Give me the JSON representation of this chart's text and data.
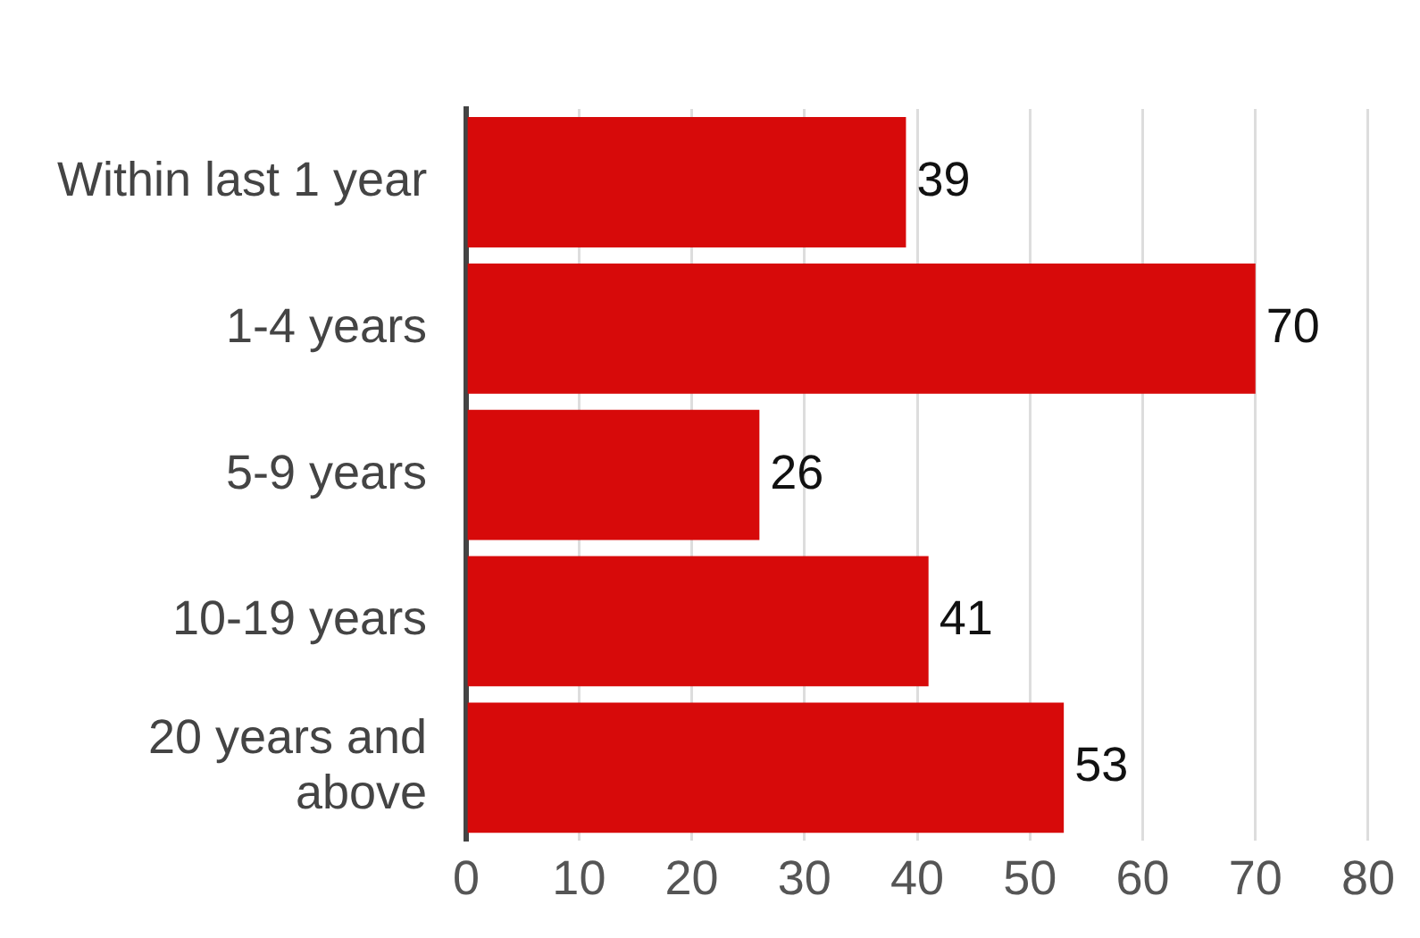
{
  "chart_data": {
    "type": "bar",
    "orientation": "horizontal",
    "categories": [
      "Within last 1 year",
      "1-4 years",
      "5-9 years",
      "10-19 years",
      "20 years and above"
    ],
    "values": [
      39,
      70,
      26,
      41,
      53
    ],
    "color": "#d70a0a",
    "data_labels": true,
    "xlim": [
      0,
      80
    ],
    "xticks": [
      0,
      10,
      20,
      30,
      40,
      50,
      60,
      70,
      80
    ],
    "grid": "x"
  }
}
